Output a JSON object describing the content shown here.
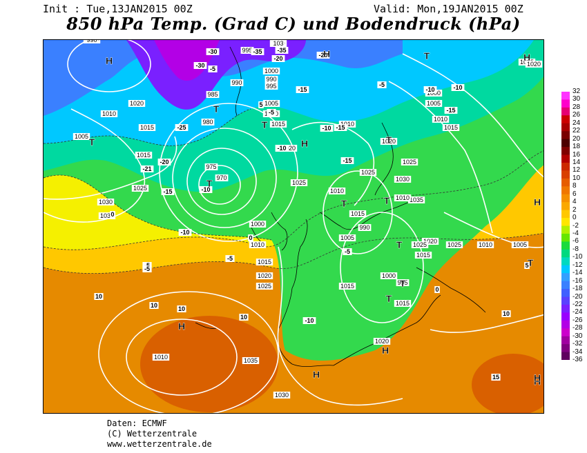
{
  "header": {
    "init": "Init : Tue,13JAN2015 00Z",
    "valid": "Valid: Mon,19JAN2015 00Z",
    "title": "850 hPa Temp. (Grad C) und Bodendruck (hPa)"
  },
  "legend": {
    "ticks": [
      "32",
      "30",
      "28",
      "26",
      "24",
      "22",
      "20",
      "18",
      "16",
      "14",
      "12",
      "10",
      "8",
      "6",
      "4",
      "2",
      "0",
      "-2",
      "-4",
      "-6",
      "-8",
      "-10",
      "-12",
      "-14",
      "-16",
      "-18",
      "-20",
      "-22",
      "-24",
      "-26",
      "-28",
      "-30",
      "-32",
      "-34",
      "-36"
    ],
    "colors": [
      "#ff33ff",
      "#ff00cc",
      "#e60073",
      "#cc0000",
      "#a80000",
      "#7a0000",
      "#4d0000",
      "#800000",
      "#b30000",
      "#cc2900",
      "#d94000",
      "#e65c00",
      "#f07700",
      "#f59000",
      "#faa800",
      "#ffc800",
      "#ffe600",
      "#b3f000",
      "#66e600",
      "#1adb3d",
      "#00d980",
      "#00d9c0",
      "#00c8ff",
      "#33a0ff",
      "#3a80ff",
      "#4060ff",
      "#5a40ff",
      "#7a20ff",
      "#9900ff",
      "#b300e6",
      "#cc00cc",
      "#a000a0",
      "#800080",
      "#600060"
    ]
  },
  "map": {
    "pressure_labels": [
      "1020",
      "1000",
      "995",
      "990",
      "985",
      "980",
      "975",
      "970",
      "990",
      "995",
      "1000",
      "1005",
      "1010",
      "1015",
      "1020",
      "1025",
      "1030",
      "1035",
      "1010",
      "1015",
      "1020",
      "1025",
      "1030",
      "1035",
      "1015",
      "1005",
      "1010",
      "1015",
      "1020",
      "1025",
      "1000",
      "1010",
      "1015",
      "1020",
      "1025",
      "1010",
      "1015",
      "1005",
      "990",
      "995",
      "1000",
      "1005",
      "1010",
      "1015",
      "1020",
      "1025",
      "1025",
      "1010",
      "1015",
      "1020",
      "1025",
      "1010",
      "1005",
      "1000",
      "1015",
      "1010",
      "1035",
      "1030",
      "1025",
      "1020",
      "990",
      "103"
    ],
    "temp_labels": [
      "-30",
      "-35",
      "-30",
      "-20",
      "-35",
      "-25",
      "-21",
      "-20",
      "-15",
      "-10",
      "-5",
      "0",
      "-10",
      "-5",
      "5",
      "10",
      "10",
      "10",
      "10",
      "15",
      "-15",
      "-10",
      "-15",
      "-20",
      "-10",
      "-10",
      "-15",
      "-5",
      "-5",
      "0",
      "5",
      "10",
      "-5",
      "-5",
      "0",
      "-10",
      "-5",
      "-15",
      "-10"
    ],
    "symbols": [
      "H",
      "H",
      "T",
      "T",
      "T",
      "T",
      "H",
      "T",
      "T",
      "T",
      "H",
      "H",
      "T",
      "T",
      "T",
      "H",
      "H",
      "H",
      "H",
      "H",
      "T",
      "T"
    ]
  },
  "credits": {
    "line1": "Daten: ECMWF",
    "line2": "(C) Wetterzentrale",
    "line3": "www.wetterzentrale.de"
  }
}
